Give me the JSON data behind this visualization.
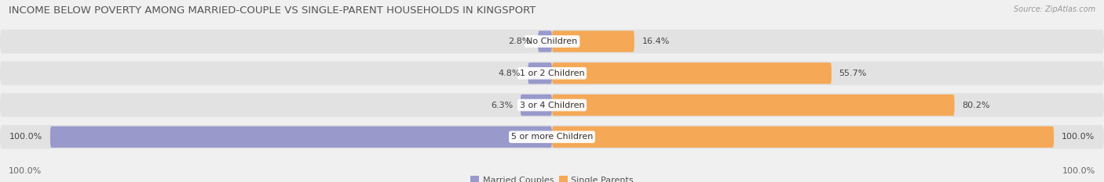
{
  "title": "INCOME BELOW POVERTY AMONG MARRIED-COUPLE VS SINGLE-PARENT HOUSEHOLDS IN KINGSPORT",
  "source": "Source: ZipAtlas.com",
  "categories": [
    "No Children",
    "1 or 2 Children",
    "3 or 4 Children",
    "5 or more Children"
  ],
  "married_values": [
    2.8,
    4.8,
    6.3,
    100.0
  ],
  "single_values": [
    16.4,
    55.7,
    80.2,
    100.0
  ],
  "married_color": "#9999cc",
  "single_color": "#f5a855",
  "bar_row_bg": "#e2e2e2",
  "title_fontsize": 9.5,
  "label_fontsize": 8,
  "category_fontsize": 8,
  "legend_fontsize": 8,
  "max_value": 100.0,
  "fig_bg_color": "#f0f0f0"
}
